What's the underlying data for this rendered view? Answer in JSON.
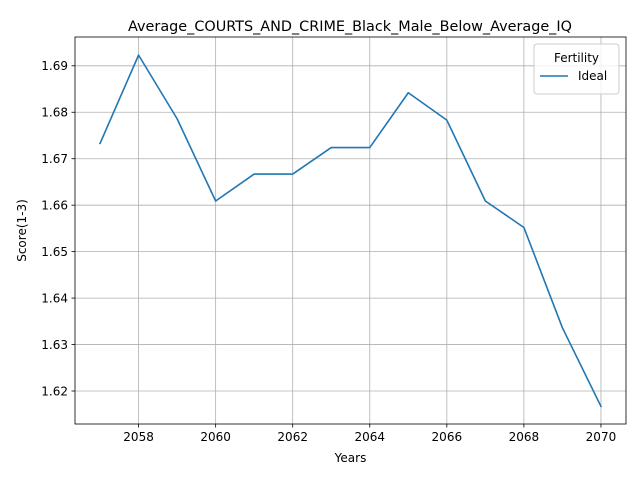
{
  "chart_data": {
    "type": "line",
    "title": "Average_COURTS_AND_CRIME_Black_Male_Below_Average_IQ",
    "xlabel": "Years",
    "ylabel": "Score(1-3)",
    "xlim": [
      2056.35,
      2070.65
    ],
    "ylim": [
      1.6129,
      1.6962
    ],
    "x_ticks": [
      2058,
      2060,
      2062,
      2064,
      2066,
      2068,
      2070
    ],
    "x_tick_labels": [
      "2058",
      "2060",
      "2062",
      "2064",
      "2066",
      "2068",
      "2070"
    ],
    "y_ticks": [
      1.62,
      1.63,
      1.64,
      1.65,
      1.66,
      1.67,
      1.68,
      1.69
    ],
    "y_tick_labels": [
      "1.62",
      "1.63",
      "1.64",
      "1.65",
      "1.66",
      "1.67",
      "1.68",
      "1.69"
    ],
    "grid": true,
    "legend": {
      "title": "Fertility",
      "placement": "top-right"
    },
    "x": [
      2057,
      2058,
      2059,
      2060,
      2061,
      2062,
      2063,
      2064,
      2065,
      2066,
      2067,
      2068,
      2069,
      2070
    ],
    "series": [
      {
        "name": "Ideal",
        "color": "#1f77b4",
        "values": [
          1.6733,
          1.6923,
          1.6786,
          1.6609,
          1.6667,
          1.6667,
          1.6724,
          1.6724,
          1.6842,
          1.6783,
          1.6609,
          1.6552,
          1.6336,
          1.6167
        ]
      }
    ]
  }
}
